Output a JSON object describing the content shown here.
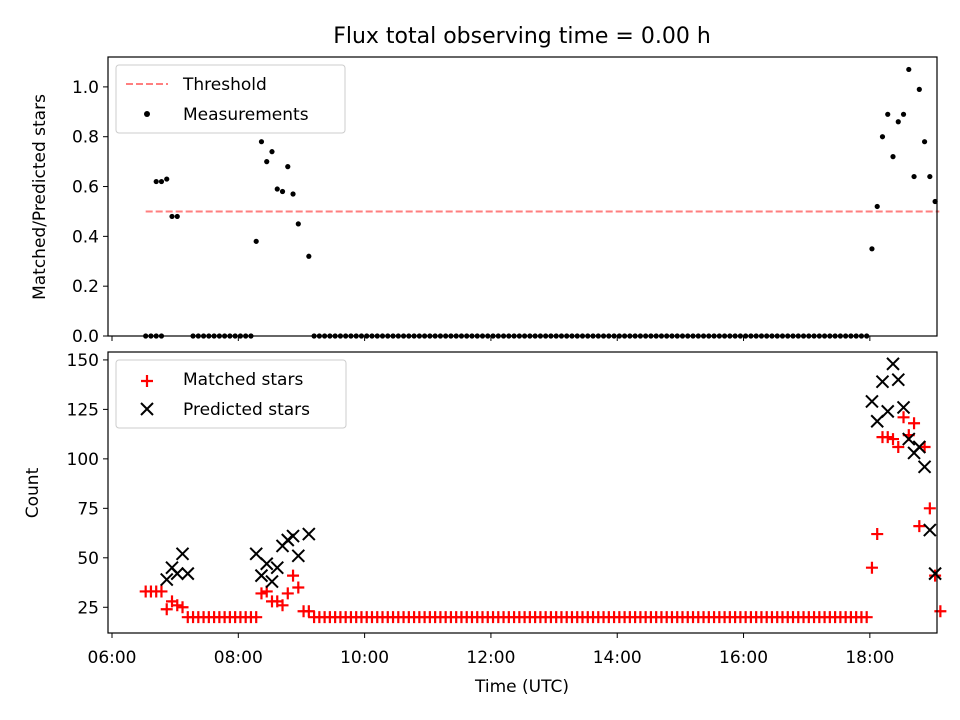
{
  "title": "Flux total observing time = 0.00 h",
  "chart_data": [
    {
      "type": "scatter",
      "panel": "top",
      "ylabel": "Matched/Predicted stars",
      "xlim": [
        "06:00",
        "19:00"
      ],
      "ylim": [
        0,
        1.12
      ],
      "yticks": [
        0.0,
        0.2,
        0.4,
        0.6,
        0.8,
        1.0
      ],
      "ytick_labels": [
        "0.0",
        "0.2",
        "0.4",
        "0.6",
        "0.8",
        "1.0"
      ],
      "grid": false,
      "legend_position": "top-left",
      "legend": [
        "Threshold",
        "Measurements"
      ],
      "series": [
        {
          "name": "Threshold",
          "kind": "dashed-line",
          "color": "#ff7f7f",
          "x": [
            "06:32",
            "19:06"
          ],
          "y": [
            0.5,
            0.5
          ]
        },
        {
          "name": "Measurements",
          "kind": "dots",
          "color": "#000000",
          "points": [
            [
              "06:42",
              0.62
            ],
            [
              "06:47",
              0.62
            ],
            [
              "06:52",
              0.63
            ],
            [
              "06:57",
              0.48
            ],
            [
              "07:02",
              0.48
            ],
            [
              "08:17",
              0.38
            ],
            [
              "08:22",
              0.78
            ],
            [
              "08:27",
              0.7
            ],
            [
              "08:32",
              0.74
            ],
            [
              "08:37",
              0.59
            ],
            [
              "08:42",
              0.58
            ],
            [
              "08:47",
              0.68
            ],
            [
              "08:52",
              0.57
            ],
            [
              "08:57",
              0.45
            ],
            [
              "09:07",
              0.32
            ],
            [
              "18:02",
              0.35
            ],
            [
              "18:07",
              0.52
            ],
            [
              "18:12",
              0.8
            ],
            [
              "18:17",
              0.89
            ],
            [
              "18:22",
              0.72
            ],
            [
              "18:27",
              0.86
            ],
            [
              "18:32",
              0.89
            ],
            [
              "18:37",
              1.07
            ],
            [
              "18:42",
              0.64
            ],
            [
              "18:47",
              0.99
            ],
            [
              "18:52",
              0.78
            ],
            [
              "18:57",
              0.64
            ],
            [
              "19:02",
              0.54
            ]
          ],
          "zero_run": [
            [
              "06:32",
              "06:47"
            ],
            [
              "07:17",
              "08:12"
            ],
            [
              "09:12",
              "17:57"
            ]
          ]
        }
      ]
    },
    {
      "type": "scatter",
      "panel": "bottom",
      "xlabel": "Time (UTC)",
      "ylabel": "Count",
      "xlim": [
        "06:00",
        "19:00"
      ],
      "ylim": [
        12,
        154
      ],
      "xticks": [
        "06:00",
        "08:00",
        "10:00",
        "12:00",
        "14:00",
        "16:00",
        "18:00"
      ],
      "yticks": [
        25,
        50,
        75,
        100,
        125,
        150
      ],
      "ytick_labels": [
        "25",
        "50",
        "75",
        "100",
        "125",
        "150"
      ],
      "grid": false,
      "legend_position": "top-left",
      "legend": [
        "Matched stars",
        "Predicted stars"
      ],
      "series": [
        {
          "name": "Matched stars",
          "marker": "plus",
          "color": "#ff0000",
          "points": [
            [
              "06:32",
              33
            ],
            [
              "06:37",
              33
            ],
            [
              "06:42",
              33
            ],
            [
              "06:47",
              33
            ],
            [
              "06:52",
              24
            ],
            [
              "06:57",
              28
            ],
            [
              "07:02",
              26
            ],
            [
              "07:07",
              25
            ],
            [
              "08:17",
              20
            ],
            [
              "08:22",
              32
            ],
            [
              "08:27",
              33
            ],
            [
              "08:32",
              28
            ],
            [
              "08:37",
              28
            ],
            [
              "08:42",
              26
            ],
            [
              "08:47",
              32
            ],
            [
              "08:52",
              41
            ],
            [
              "08:57",
              35
            ],
            [
              "09:02",
              23
            ],
            [
              "09:07",
              23
            ],
            [
              "18:02",
              45
            ],
            [
              "18:07",
              62
            ],
            [
              "18:12",
              111
            ],
            [
              "18:17",
              111
            ],
            [
              "18:22",
              110
            ],
            [
              "18:27",
              106
            ],
            [
              "18:32",
              121
            ],
            [
              "18:37",
              112
            ],
            [
              "18:42",
              118
            ],
            [
              "18:47",
              66
            ],
            [
              "18:52",
              106
            ],
            [
              "18:57",
              75
            ],
            [
              "19:02",
              41
            ],
            [
              "19:07",
              23
            ]
          ],
          "baseline": {
            "value": 20,
            "runs": [
              [
                "07:12",
                "08:12"
              ],
              [
                "09:12",
                "17:57"
              ]
            ]
          }
        },
        {
          "name": "Predicted stars",
          "marker": "x",
          "color": "#000000",
          "points": [
            [
              "06:52",
              39
            ],
            [
              "06:57",
              45
            ],
            [
              "07:02",
              42
            ],
            [
              "07:07",
              52
            ],
            [
              "07:12",
              42
            ],
            [
              "08:17",
              52
            ],
            [
              "08:22",
              41
            ],
            [
              "08:27",
              47
            ],
            [
              "08:32",
              38
            ],
            [
              "08:37",
              45
            ],
            [
              "08:42",
              56
            ],
            [
              "08:47",
              59
            ],
            [
              "08:52",
              61
            ],
            [
              "08:57",
              51
            ],
            [
              "09:07",
              62
            ],
            [
              "18:02",
              129
            ],
            [
              "18:07",
              119
            ],
            [
              "18:12",
              139
            ],
            [
              "18:17",
              124
            ],
            [
              "18:22",
              148
            ],
            [
              "18:27",
              140
            ],
            [
              "18:32",
              126
            ],
            [
              "18:37",
              110
            ],
            [
              "18:42",
              103
            ],
            [
              "18:47",
              106
            ],
            [
              "18:52",
              96
            ],
            [
              "18:57",
              64
            ],
            [
              "19:02",
              42
            ]
          ]
        }
      ]
    }
  ]
}
